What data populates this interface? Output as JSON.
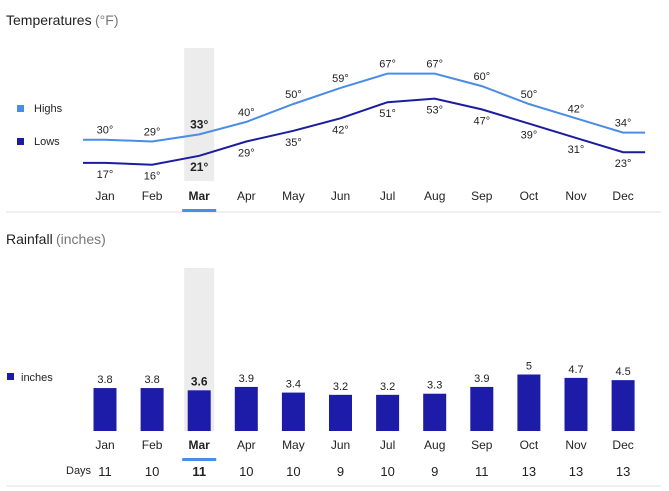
{
  "selected_month": "Mar",
  "colors": {
    "highs": "#4a8de6",
    "lows": "#1c1ca0",
    "bars": "#1c1ca8",
    "accent": "#4a8de6",
    "highlight": "#ececec"
  },
  "chart_data": [
    {
      "type": "line",
      "title": "Temperatures",
      "unit": "(°F)",
      "categories": [
        "Jan",
        "Feb",
        "Mar",
        "Apr",
        "May",
        "Jun",
        "Jul",
        "Aug",
        "Sep",
        "Oct",
        "Nov",
        "Dec"
      ],
      "series": [
        {
          "name": "Highs",
          "values": [
            30,
            29,
            33,
            40,
            50,
            59,
            67,
            67,
            60,
            50,
            42,
            34
          ]
        },
        {
          "name": "Lows",
          "values": [
            17,
            16,
            21,
            29,
            35,
            42,
            51,
            53,
            47,
            39,
            31,
            23
          ]
        }
      ],
      "value_suffix": "°",
      "ylim": [
        0,
        80
      ],
      "legend": "left"
    },
    {
      "type": "bar",
      "title": "Rainfall",
      "unit": "(inches)",
      "categories": [
        "Jan",
        "Feb",
        "Mar",
        "Apr",
        "May",
        "Jun",
        "Jul",
        "Aug",
        "Sep",
        "Oct",
        "Nov",
        "Dec"
      ],
      "series": [
        {
          "name": "inches",
          "values": [
            3.8,
            3.8,
            3.6,
            3.9,
            3.4,
            3.2,
            3.2,
            3.3,
            3.9,
            5,
            4.7,
            4.5
          ]
        }
      ],
      "ylim": [
        0,
        12
      ],
      "legend": "left",
      "extra_row": {
        "label": "Days",
        "values": [
          11,
          10,
          11,
          10,
          10,
          9,
          10,
          9,
          11,
          13,
          13,
          13
        ]
      }
    }
  ]
}
